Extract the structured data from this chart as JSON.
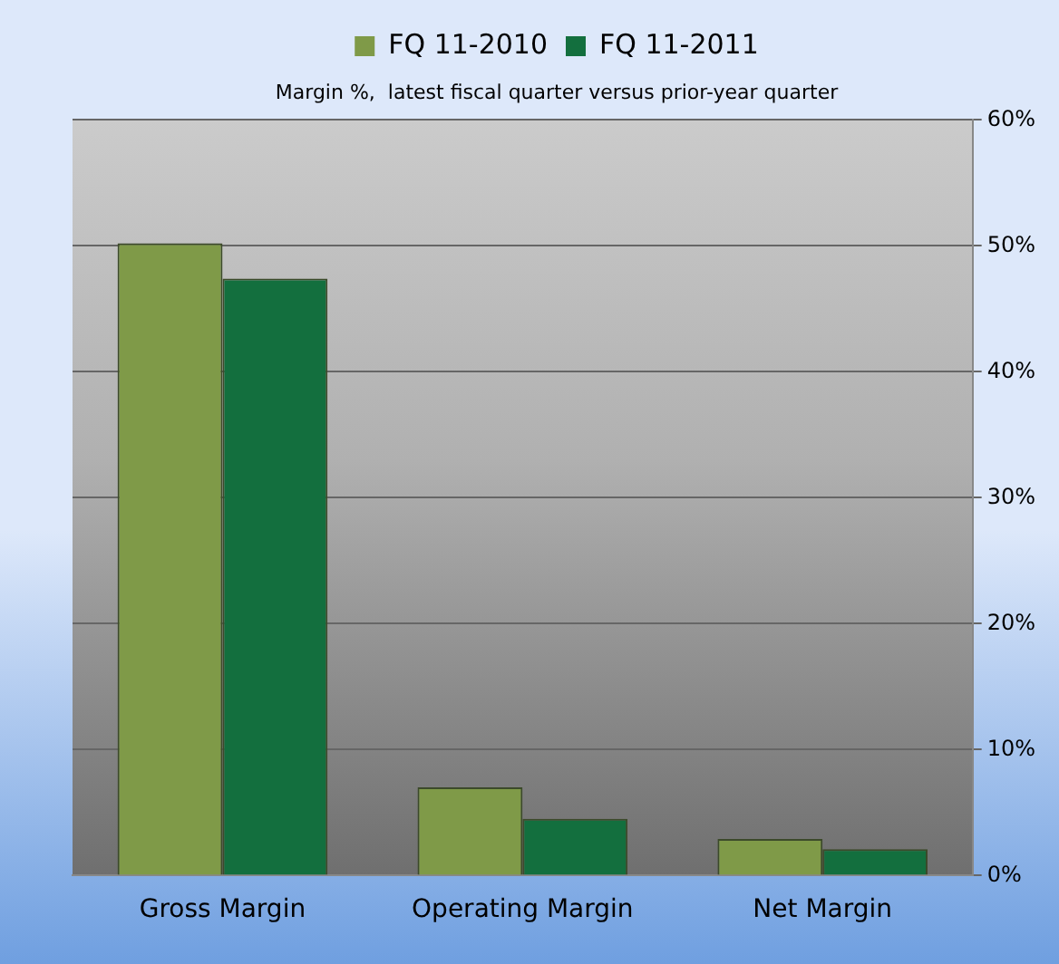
{
  "chart_data": {
    "type": "bar",
    "title": "Margin %,  latest fiscal quarter versus prior-year quarter",
    "categories": [
      "Gross Margin",
      "Operating Margin",
      "Net Margin"
    ],
    "series": [
      {
        "name": "FQ 11-2010",
        "color": "#7f9a48",
        "values": [
          50.2,
          7.0,
          2.9
        ]
      },
      {
        "name": "FQ 11-2011",
        "color": "#136f3e",
        "values": [
          47.4,
          4.5,
          2.1
        ]
      }
    ],
    "ylim": [
      0,
      60
    ],
    "yticks": [
      {
        "value": 0,
        "label": "0%"
      },
      {
        "value": 10,
        "label": "10%"
      },
      {
        "value": 20,
        "label": "20%"
      },
      {
        "value": 30,
        "label": "30%"
      },
      {
        "value": 40,
        "label": "40%"
      },
      {
        "value": 50,
        "label": "50%"
      },
      {
        "value": 60,
        "label": "60%"
      }
    ],
    "grid": "y",
    "legend": "top"
  }
}
